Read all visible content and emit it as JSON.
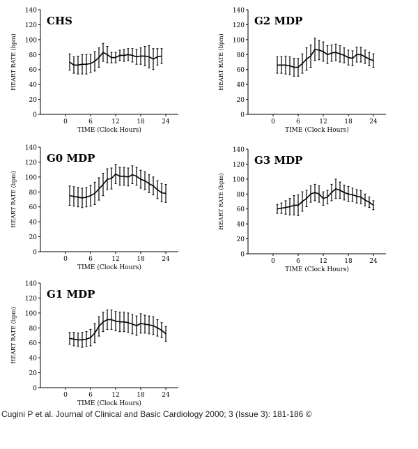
{
  "caption": "Cugini P et al. Journal of Clinical and Basic Cardiology 2000; 3 (Issue 3): 181-186 ©",
  "chart_data": [
    {
      "type": "line",
      "title": "CHS",
      "xlabel": "TIME (Clock Hours)",
      "ylabel": "HEART RATE (bpm)",
      "xlim": [
        -6,
        27
      ],
      "ylim": [
        0,
        140
      ],
      "xticks": [
        0,
        6,
        12,
        18,
        24
      ],
      "yticks": [
        0,
        20,
        40,
        60,
        80,
        100,
        120,
        140
      ],
      "grid": false,
      "series": [
        {
          "x": [
            1,
            2,
            3,
            4,
            5,
            6,
            7,
            8,
            9,
            10,
            11,
            12,
            13,
            14,
            15,
            16,
            17,
            18,
            19,
            20,
            21,
            22,
            23
          ],
          "y": [
            70,
            66,
            66,
            67,
            67,
            68,
            71,
            76,
            83,
            80,
            76,
            76,
            79,
            79,
            80,
            79,
            77,
            78,
            78,
            77,
            74,
            77,
            78
          ],
          "err": [
            11,
            11,
            12,
            13,
            13,
            12,
            13,
            13,
            12,
            11,
            7,
            7,
            7,
            8,
            8,
            9,
            10,
            11,
            13,
            15,
            14,
            11,
            10
          ]
        }
      ]
    },
    {
      "type": "line",
      "title": "G2 MDP",
      "xlabel": "TIME (Clock Hours)",
      "ylabel": "HEART RATE (bpm)",
      "xlim": [
        -6,
        27
      ],
      "ylim": [
        0,
        140
      ],
      "xticks": [
        0,
        6,
        12,
        18,
        24
      ],
      "yticks": [
        0,
        20,
        40,
        60,
        80,
        100,
        120,
        140
      ],
      "grid": false,
      "series": [
        {
          "x": [
            1,
            2,
            3,
            4,
            5,
            6,
            7,
            8,
            9,
            10,
            11,
            12,
            13,
            14,
            15,
            16,
            17,
            18,
            19,
            20,
            21,
            22,
            23,
            24
          ],
          "y": [
            66,
            66,
            66,
            65,
            63,
            63,
            68,
            74,
            78,
            87,
            86,
            84,
            80,
            82,
            83,
            81,
            79,
            76,
            75,
            80,
            80,
            77,
            74,
            72
          ],
          "err": [
            11,
            11,
            12,
            12,
            12,
            12,
            13,
            15,
            15,
            15,
            13,
            13,
            12,
            11,
            11,
            11,
            10,
            10,
            10,
            10,
            10,
            9,
            9,
            9
          ]
        }
      ]
    },
    {
      "type": "line",
      "title": "G0 MDP",
      "xlabel": "TIME (Clock Hours)",
      "ylabel": "HEART RATE (bpm)",
      "xlim": [
        -6,
        27
      ],
      "ylim": [
        0,
        140
      ],
      "xticks": [
        0,
        6,
        12,
        18,
        24
      ],
      "yticks": [
        0,
        20,
        40,
        60,
        80,
        100,
        120,
        140
      ],
      "grid": false,
      "series": [
        {
          "x": [
            1,
            2,
            3,
            4,
            5,
            6,
            7,
            8,
            9,
            10,
            11,
            12,
            13,
            14,
            15,
            16,
            17,
            18,
            19,
            20,
            21,
            22,
            23,
            24
          ],
          "y": [
            75,
            74,
            73,
            72,
            73,
            75,
            78,
            84,
            90,
            97,
            98,
            104,
            101,
            101,
            100,
            103,
            101,
            97,
            95,
            91,
            88,
            83,
            79,
            78
          ],
          "err": [
            13,
            13,
            13,
            13,
            13,
            14,
            15,
            15,
            15,
            14,
            14,
            13,
            12,
            12,
            12,
            12,
            12,
            12,
            12,
            12,
            12,
            12,
            12,
            12
          ]
        }
      ]
    },
    {
      "type": "line",
      "title": "G3 MDP",
      "xlabel": "TIME (Clock Hours)",
      "ylabel": "HEART RATE (bpm)",
      "xlim": [
        -6,
        27
      ],
      "ylim": [
        0,
        140
      ],
      "xticks": [
        0,
        6,
        12,
        18,
        24
      ],
      "yticks": [
        0,
        20,
        40,
        60,
        80,
        100,
        120,
        140
      ],
      "grid": false,
      "series": [
        {
          "x": [
            1,
            2,
            3,
            4,
            5,
            6,
            7,
            8,
            9,
            10,
            11,
            12,
            13,
            14,
            15,
            16,
            17,
            18,
            19,
            20,
            21,
            22,
            23,
            24
          ],
          "y": [
            60,
            61,
            62,
            63,
            65,
            65,
            70,
            74,
            80,
            82,
            80,
            74,
            76,
            82,
            87,
            85,
            82,
            80,
            79,
            77,
            76,
            72,
            69,
            65
          ],
          "err": [
            6,
            7,
            9,
            11,
            13,
            14,
            13,
            11,
            11,
            11,
            11,
            9,
            9,
            11,
            13,
            11,
            10,
            10,
            9,
            9,
            9,
            8,
            7,
            6
          ]
        }
      ]
    },
    {
      "type": "line",
      "title": "G1 MDP",
      "xlabel": "TIME (Clock Hours)",
      "ylabel": "HEART RATE (bpm)",
      "xlim": [
        -6,
        27
      ],
      "ylim": [
        0,
        140
      ],
      "xticks": [
        0,
        6,
        12,
        18,
        24
      ],
      "yticks": [
        0,
        20,
        40,
        60,
        80,
        100,
        120,
        140
      ],
      "grid": false,
      "series": [
        {
          "x": [
            1,
            2,
            3,
            4,
            5,
            6,
            7,
            8,
            9,
            10,
            11,
            12,
            13,
            14,
            15,
            16,
            17,
            18,
            19,
            20,
            21,
            22,
            23,
            24
          ],
          "y": [
            66,
            65,
            64,
            64,
            65,
            67,
            73,
            82,
            88,
            91,
            91,
            89,
            88,
            88,
            87,
            85,
            83,
            86,
            85,
            84,
            83,
            80,
            77,
            72
          ],
          "err": [
            8,
            9,
            9,
            10,
            10,
            11,
            13,
            13,
            13,
            13,
            13,
            13,
            13,
            13,
            13,
            13,
            13,
            13,
            12,
            12,
            12,
            11,
            10,
            10
          ]
        }
      ]
    }
  ]
}
